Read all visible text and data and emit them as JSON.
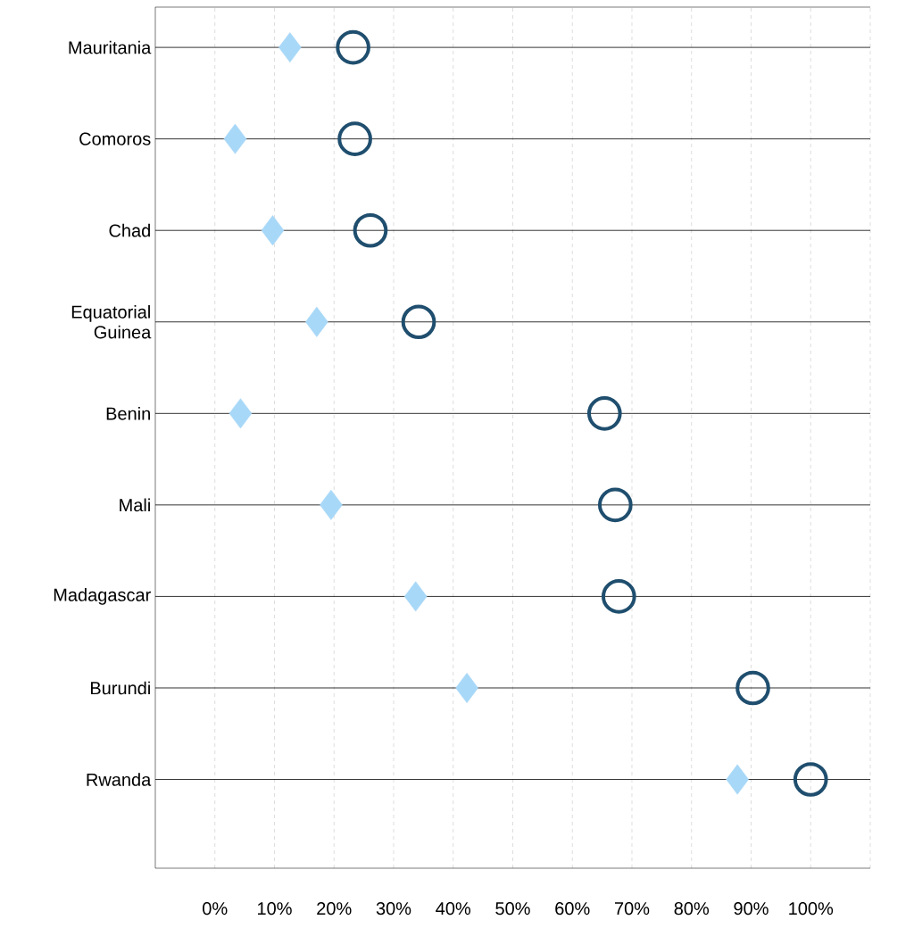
{
  "chart_data": {
    "type": "scatter",
    "orientation": "horizontal",
    "categories": [
      "Mauritania",
      "Comoros",
      "Chad",
      "Equatorial Guinea",
      "Benin",
      "Mali",
      "Madagascar",
      "Burundi",
      "Rwanda"
    ],
    "series": [
      {
        "color": "#a8d8f8",
        "marker": "diamond",
        "values": [
          12.6,
          3.4,
          9.7,
          17.1,
          4.3,
          19.5,
          33.7,
          42.3,
          87.7
        ]
      },
      {
        "color": "#1f4e6e",
        "marker": "circle",
        "values": [
          23.2,
          23.5,
          26.1,
          34.2,
          65.4,
          67.2,
          67.8,
          90.3,
          100
        ]
      }
    ],
    "xlim": [
      -10,
      110
    ],
    "xticks": [
      {
        "value": 0,
        "label": "0%"
      },
      {
        "value": 10,
        "label": "10%"
      },
      {
        "value": 20,
        "label": "20%"
      },
      {
        "value": 30,
        "label": "30%"
      },
      {
        "value": 40,
        "label": "40%"
      },
      {
        "value": 50,
        "label": "50%"
      },
      {
        "value": 60,
        "label": "60%"
      },
      {
        "value": 70,
        "label": "70%"
      },
      {
        "value": 80,
        "label": "80%"
      },
      {
        "value": 90,
        "label": "90%"
      },
      {
        "value": 100,
        "label": "100%"
      },
      {
        "value": 110,
        "label": null
      }
    ],
    "grid": true
  }
}
